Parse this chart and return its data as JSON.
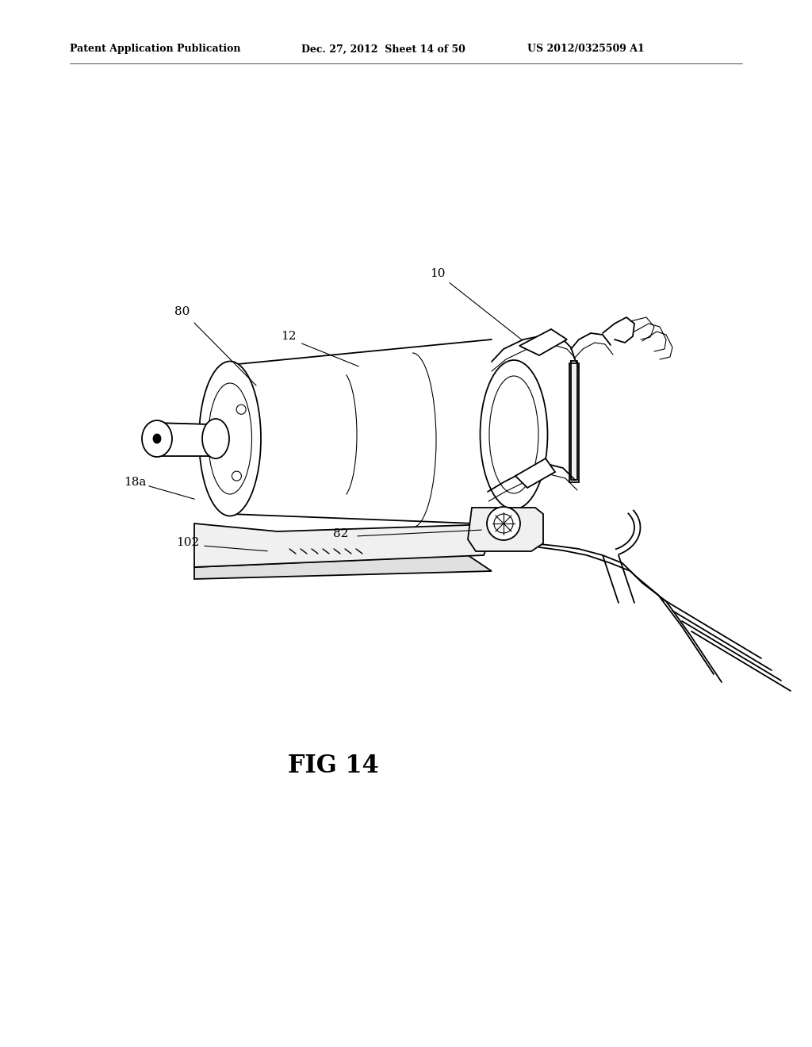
{
  "background_color": "#ffffff",
  "header_left": "Patent Application Publication",
  "header_mid": "Dec. 27, 2012  Sheet 14 of 50",
  "header_right": "US 2012/0325509 A1",
  "figure_label": "FIG 14",
  "figsize": [
    10.24,
    13.2
  ],
  "dpi": 100
}
